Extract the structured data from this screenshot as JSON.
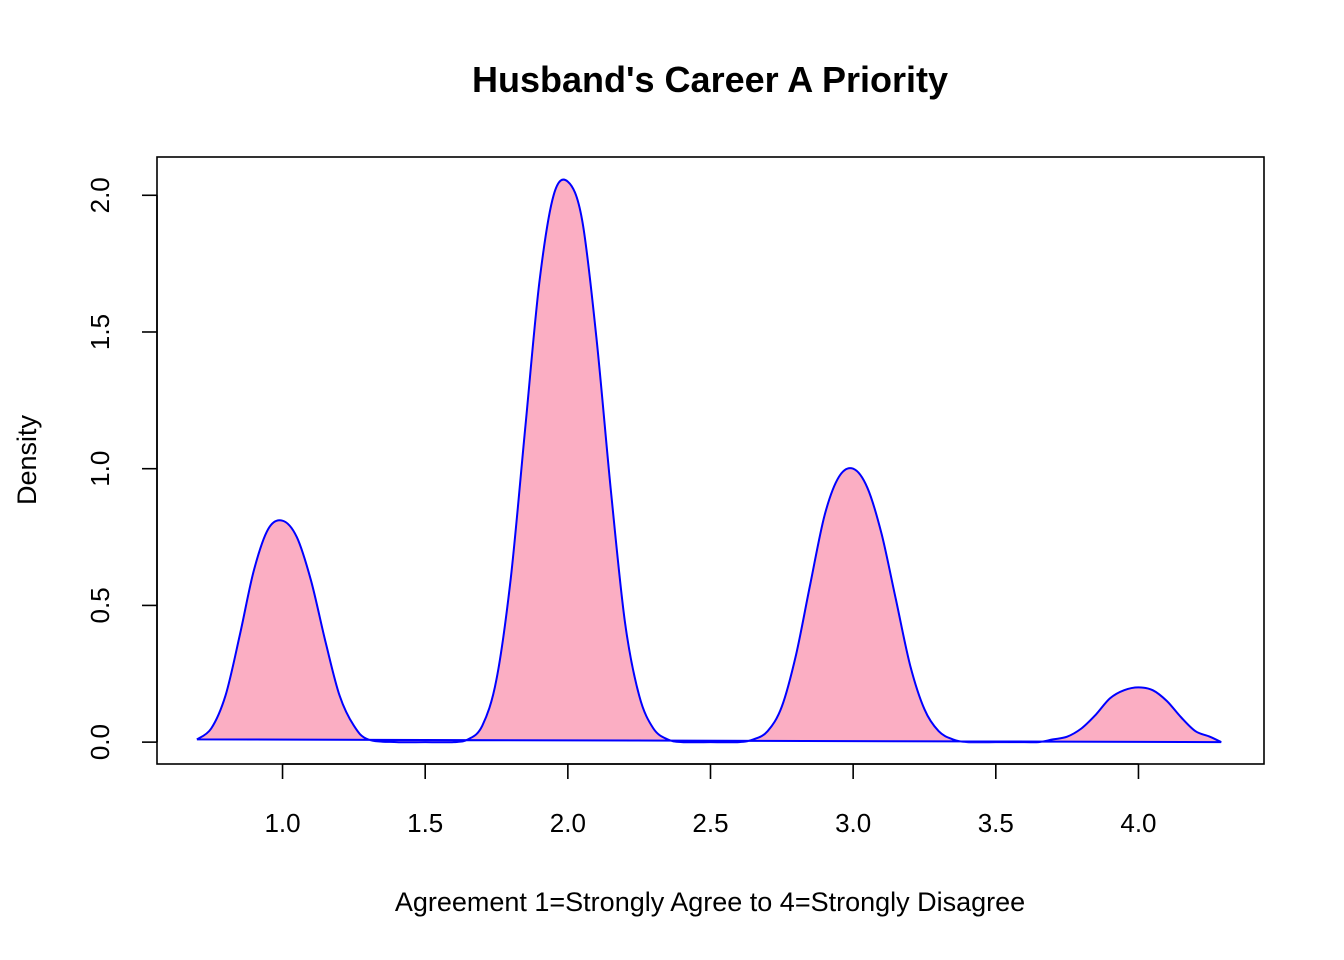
{
  "chart_data": {
    "type": "area",
    "title": "Husband's Career A Priority",
    "xlabel": "Agreement 1=Strongly Agree to 4=Strongly Disagree",
    "ylabel": "Density",
    "xlim": [
      0.56,
      4.44
    ],
    "ylim": [
      -0.08,
      2.14
    ],
    "x_ticks": [
      1.0,
      1.5,
      2.0,
      2.5,
      3.0,
      3.5,
      4.0
    ],
    "x_tick_labels": [
      "1.0",
      "1.5",
      "2.0",
      "2.5",
      "3.0",
      "3.5",
      "4.0"
    ],
    "y_ticks": [
      0.0,
      0.5,
      1.0,
      1.5,
      2.0
    ],
    "y_tick_labels": [
      "0.0",
      "0.5",
      "1.0",
      "1.5",
      "2.0"
    ],
    "grid": false,
    "fill_color": "#FBAEC3",
    "line_color": "#0000FF",
    "series": [
      {
        "x": [
          0.7,
          0.75,
          0.8,
          0.85,
          0.9,
          0.95,
          1.0,
          1.05,
          1.1,
          1.15,
          1.2,
          1.25,
          1.3,
          1.4,
          1.5,
          1.6,
          1.65,
          1.7,
          1.75,
          1.8,
          1.85,
          1.9,
          1.95,
          2.0,
          2.05,
          2.1,
          2.15,
          2.2,
          2.25,
          2.3,
          2.35,
          2.4,
          2.5,
          2.6,
          2.65,
          2.7,
          2.75,
          2.8,
          2.85,
          2.9,
          2.95,
          3.0,
          3.05,
          3.1,
          3.15,
          3.2,
          3.25,
          3.3,
          3.35,
          3.4,
          3.5,
          3.6,
          3.65,
          3.7,
          3.75,
          3.8,
          3.85,
          3.9,
          3.95,
          4.0,
          4.05,
          4.1,
          4.15,
          4.2,
          4.25,
          4.29
        ],
        "y": [
          0.01,
          0.05,
          0.17,
          0.39,
          0.63,
          0.78,
          0.81,
          0.75,
          0.59,
          0.37,
          0.17,
          0.06,
          0.01,
          0.0,
          0.0,
          0.0,
          0.01,
          0.06,
          0.23,
          0.6,
          1.14,
          1.68,
          2.0,
          2.05,
          1.91,
          1.48,
          0.93,
          0.44,
          0.17,
          0.05,
          0.01,
          0.0,
          0.0,
          0.0,
          0.01,
          0.04,
          0.13,
          0.32,
          0.58,
          0.83,
          0.97,
          1.0,
          0.93,
          0.76,
          0.52,
          0.28,
          0.12,
          0.04,
          0.01,
          0.0,
          0.0,
          0.0,
          0.0,
          0.01,
          0.02,
          0.05,
          0.1,
          0.16,
          0.19,
          0.2,
          0.19,
          0.15,
          0.09,
          0.04,
          0.02,
          0.0
        ]
      }
    ]
  }
}
